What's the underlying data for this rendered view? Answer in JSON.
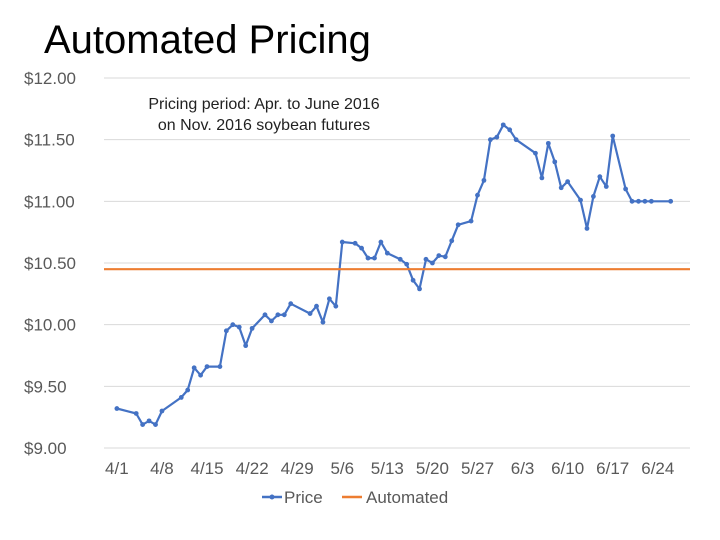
{
  "slide": {
    "title": "Automated Pricing"
  },
  "chart_data": {
    "type": "line",
    "annotation": [
      "Pricing period: Apr. to June 2016",
      "on Nov. 2016 soybean futures"
    ],
    "ylim": [
      9.0,
      12.0
    ],
    "y_ticks": [
      "$12.00",
      "$11.50",
      "$11.00",
      "$10.50",
      "$10.00",
      "$9.50",
      "$9.00"
    ],
    "y_tick_values": [
      12.0,
      11.5,
      11.0,
      10.5,
      10.0,
      9.5,
      9.0
    ],
    "x_ticks": [
      "4/1",
      "4/8",
      "4/15",
      "4/22",
      "4/29",
      "5/6",
      "5/13",
      "5/20",
      "5/27",
      "6/3",
      "6/10",
      "6/17",
      "6/24"
    ],
    "x_tick_days": [
      1,
      8,
      15,
      22,
      29,
      36,
      43,
      50,
      57,
      64,
      71,
      78,
      85
    ],
    "xlim": [
      -1,
      90
    ],
    "grid": true,
    "legend_position": "bottom",
    "series": [
      {
        "name": "Price",
        "color": "#4472C4",
        "marker": "circle",
        "x": [
          1,
          4,
          5,
          6,
          7,
          8,
          11,
          12,
          13,
          14,
          15,
          17,
          18,
          19,
          20,
          21,
          22,
          24,
          25,
          26,
          27,
          28,
          31,
          32,
          33,
          34,
          35,
          36,
          38,
          39,
          40,
          41,
          42,
          43,
          45,
          46,
          47,
          48,
          49,
          50,
          51,
          52,
          53,
          54,
          56,
          57,
          58,
          59,
          60,
          61,
          62,
          63,
          66,
          67,
          68,
          69,
          70,
          71,
          73,
          74,
          75,
          76,
          77,
          78,
          80,
          81,
          82,
          83,
          84,
          87
        ],
        "y": [
          9.32,
          9.28,
          9.19,
          9.22,
          9.19,
          9.3,
          9.41,
          9.47,
          9.65,
          9.59,
          9.66,
          9.66,
          9.95,
          10.0,
          9.98,
          9.83,
          9.97,
          10.08,
          10.03,
          10.08,
          10.08,
          10.17,
          10.09,
          10.15,
          10.02,
          10.21,
          10.15,
          10.67,
          10.66,
          10.62,
          10.54,
          10.54,
          10.67,
          10.58,
          10.53,
          10.49,
          10.36,
          10.29,
          10.53,
          10.5,
          10.56,
          10.55,
          10.68,
          10.81,
          10.84,
          11.05,
          11.17,
          11.5,
          11.52,
          11.62,
          11.58,
          11.5,
          11.39,
          11.19,
          11.47,
          11.32,
          11.11,
          11.16,
          11.01,
          10.78,
          11.04,
          11.2,
          11.12,
          11.53,
          11.1,
          11.0,
          11.0,
          11.0,
          11.0,
          11.0
        ]
      },
      {
        "name": "Automated",
        "color": "#ED7D31",
        "marker": "none",
        "x": [
          -1,
          90
        ],
        "y": [
          10.45,
          10.45
        ]
      }
    ]
  }
}
